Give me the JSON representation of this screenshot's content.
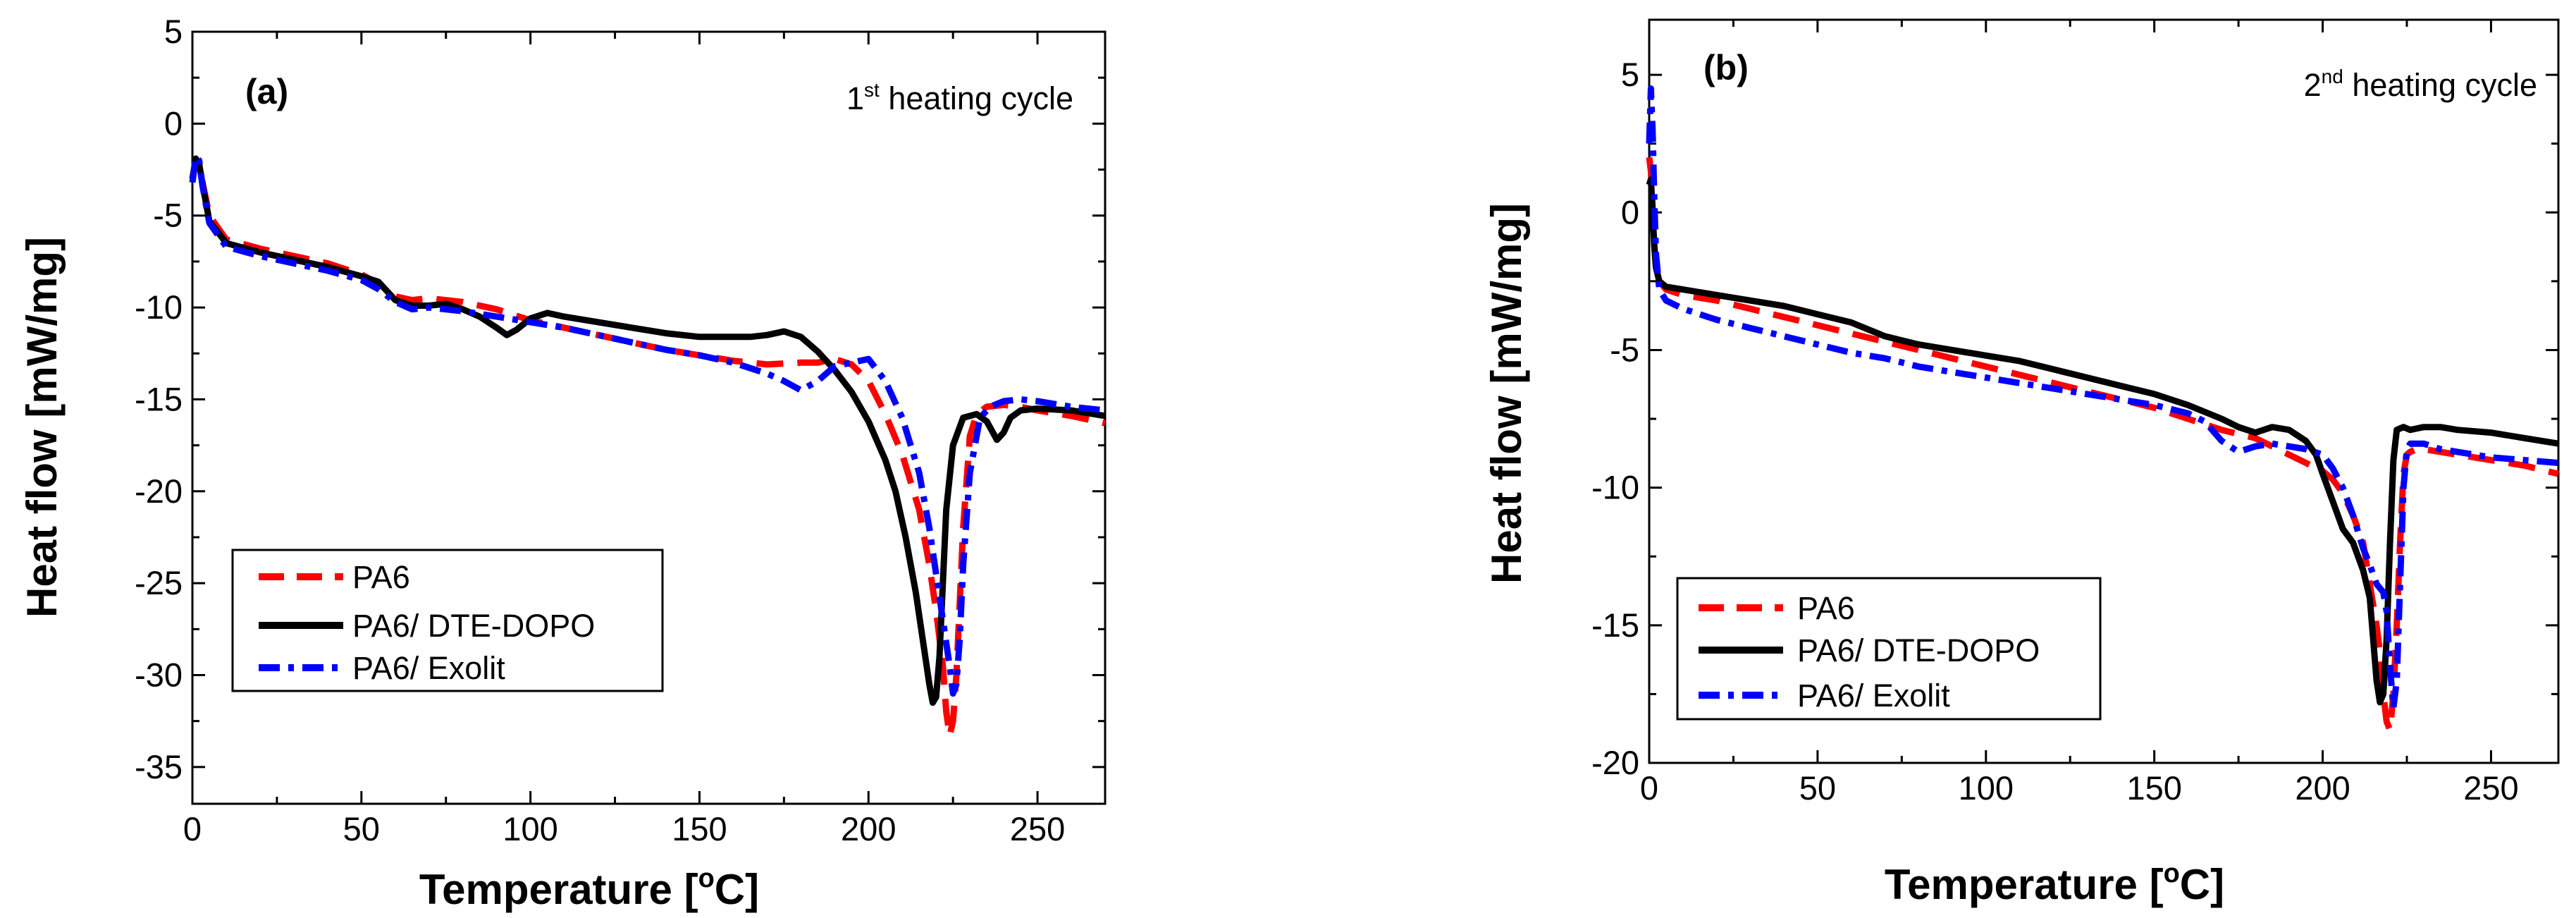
{
  "chart_data": [
    {
      "type": "line",
      "panel_label": "(a)",
      "cycle_label": {
        "ordinal": "1",
        "superscript": "st",
        "text": " heating cycle"
      },
      "xlabel": {
        "prefix": "Temperature [",
        "superscript": "o",
        "suffix": "C]"
      },
      "ylabel": "Heat flow [mW/mg]",
      "xlim": [
        0,
        270
      ],
      "ylim": [
        -37,
        5
      ],
      "xticks": [
        0,
        50,
        100,
        150,
        200,
        250
      ],
      "yticks": [
        5,
        0,
        -5,
        -10,
        -15,
        -20,
        -25,
        -30,
        -35
      ],
      "legend_position": "bottom-left",
      "series": [
        {
          "name": "PA6",
          "color": "#ff0000",
          "style": "dashed",
          "x": [
            0,
            1,
            2,
            3,
            5,
            10,
            20,
            30,
            40,
            50,
            55,
            60,
            65,
            70,
            80,
            90,
            100,
            110,
            120,
            130,
            140,
            150,
            160,
            170,
            180,
            185,
            190,
            195,
            200,
            205,
            210,
            215,
            218,
            220,
            222,
            223,
            224,
            225,
            226,
            227,
            228,
            230,
            232,
            235,
            240,
            245,
            250,
            260,
            270
          ],
          "y": [
            -3.0,
            -2.0,
            -2.3,
            -3.2,
            -5.0,
            -6.3,
            -6.8,
            -7.2,
            -7.6,
            -8.2,
            -8.7,
            -9.4,
            -9.6,
            -9.5,
            -9.7,
            -10.1,
            -10.7,
            -11.1,
            -11.5,
            -11.9,
            -12.3,
            -12.6,
            -12.9,
            -13.1,
            -13.0,
            -13.0,
            -12.8,
            -13.1,
            -14.0,
            -15.8,
            -18.0,
            -21.0,
            -24.0,
            -26.5,
            -29.5,
            -32.0,
            -33.3,
            -32.5,
            -30.0,
            -26.0,
            -22.0,
            -17.0,
            -15.8,
            -15.4,
            -15.3,
            -15.4,
            -15.6,
            -15.9,
            -16.3
          ]
        },
        {
          "name": "PA6/ DTE-DOPO",
          "color": "#000000",
          "style": "solid",
          "x": [
            0,
            1,
            2,
            3,
            5,
            10,
            20,
            30,
            40,
            50,
            55,
            60,
            65,
            70,
            75,
            80,
            85,
            90,
            93,
            96,
            100,
            105,
            110,
            120,
            130,
            140,
            150,
            160,
            165,
            170,
            175,
            180,
            185,
            190,
            195,
            200,
            205,
            208,
            211,
            214,
            216,
            218,
            219,
            220,
            221,
            222,
            223,
            225,
            228,
            232,
            235,
            238,
            240,
            242,
            245,
            250,
            260,
            270
          ],
          "y": [
            -3.0,
            -1.9,
            -2.2,
            -3.3,
            -5.3,
            -6.5,
            -7.0,
            -7.4,
            -7.8,
            -8.3,
            -8.6,
            -9.6,
            -9.9,
            -9.9,
            -9.8,
            -10.1,
            -10.5,
            -11.1,
            -11.5,
            -11.2,
            -10.6,
            -10.3,
            -10.5,
            -10.8,
            -11.1,
            -11.4,
            -11.6,
            -11.6,
            -11.6,
            -11.5,
            -11.3,
            -11.6,
            -12.4,
            -13.4,
            -14.6,
            -16.2,
            -18.3,
            -20.0,
            -22.5,
            -25.5,
            -28.0,
            -30.5,
            -31.5,
            -31.2,
            -29.0,
            -25.0,
            -21.0,
            -17.5,
            -16.0,
            -15.8,
            -16.2,
            -17.2,
            -16.8,
            -16.0,
            -15.6,
            -15.5,
            -15.6,
            -15.9
          ]
        },
        {
          "name": "PA6/ Exolit",
          "color": "#0000ff",
          "style": "dashdot",
          "x": [
            0,
            1,
            2,
            3,
            5,
            10,
            20,
            30,
            40,
            50,
            55,
            60,
            65,
            70,
            80,
            90,
            100,
            110,
            120,
            130,
            140,
            150,
            160,
            170,
            175,
            180,
            185,
            190,
            195,
            200,
            205,
            210,
            215,
            218,
            220,
            222,
            224,
            225,
            226,
            227,
            228,
            230,
            233,
            236,
            240,
            245,
            250,
            260,
            270
          ],
          "y": [
            -3.2,
            -1.8,
            -2.0,
            -3.4,
            -5.4,
            -6.7,
            -7.2,
            -7.6,
            -8.0,
            -8.5,
            -9.0,
            -9.7,
            -10.1,
            -10.0,
            -10.2,
            -10.5,
            -10.8,
            -11.1,
            -11.5,
            -11.9,
            -12.3,
            -12.6,
            -13.0,
            -13.6,
            -14.0,
            -14.5,
            -14.0,
            -13.2,
            -13.0,
            -12.8,
            -14.0,
            -16.0,
            -19.0,
            -22.0,
            -24.5,
            -27.0,
            -29.5,
            -31.0,
            -30.5,
            -28.0,
            -24.0,
            -19.0,
            -16.0,
            -15.4,
            -15.1,
            -15.0,
            -15.1,
            -15.4,
            -15.6
          ]
        }
      ]
    },
    {
      "type": "line",
      "panel_label": "(b)",
      "cycle_label": {
        "ordinal": "2",
        "superscript": "nd",
        "text": " heating cycle"
      },
      "xlabel": {
        "prefix": "Temperature [",
        "superscript": "o",
        "suffix": "C]"
      },
      "ylabel": "Heat flow [mW/mg]",
      "xlim": [
        0,
        270
      ],
      "ylim": [
        -20,
        7
      ],
      "xticks": [
        0,
        50,
        100,
        150,
        200,
        250
      ],
      "yticks": [
        5,
        0,
        -5,
        -10,
        -15,
        -20
      ],
      "legend_position": "bottom-left",
      "series": [
        {
          "name": "PA6",
          "color": "#ff0000",
          "style": "dashed",
          "x": [
            0,
            0.5,
            1,
            1.5,
            2,
            3,
            5,
            10,
            20,
            30,
            40,
            50,
            60,
            70,
            80,
            90,
            100,
            110,
            120,
            130,
            140,
            150,
            160,
            170,
            180,
            185,
            190,
            195,
            200,
            203,
            206,
            209,
            212,
            214,
            216,
            217,
            218,
            219,
            220,
            221,
            222,
            223,
            224,
            225,
            226,
            228,
            230,
            235,
            240,
            250,
            260,
            270
          ],
          "y": [
            2.0,
            1.5,
            0.2,
            -1.2,
            -2.0,
            -2.5,
            -2.8,
            -3.0,
            -3.2,
            -3.5,
            -3.8,
            -4.1,
            -4.4,
            -4.7,
            -5.0,
            -5.3,
            -5.6,
            -5.9,
            -6.2,
            -6.5,
            -6.8,
            -7.1,
            -7.5,
            -7.9,
            -8.2,
            -8.5,
            -8.8,
            -9.1,
            -9.4,
            -9.7,
            -10.2,
            -11.0,
            -12.0,
            -13.5,
            -15.0,
            -16.0,
            -17.5,
            -18.5,
            -18.8,
            -17.5,
            -15.0,
            -12.0,
            -9.5,
            -8.8,
            -8.7,
            -8.6,
            -8.6,
            -8.7,
            -8.8,
            -9.0,
            -9.2,
            -9.5
          ]
        },
        {
          "name": "PA6/ DTE-DOPO",
          "color": "#000000",
          "style": "solid",
          "x": [
            0,
            0.5,
            1,
            1.5,
            2,
            3,
            5,
            10,
            20,
            30,
            40,
            50,
            60,
            70,
            80,
            90,
            100,
            110,
            120,
            130,
            140,
            150,
            160,
            170,
            175,
            180,
            185,
            190,
            195,
            198,
            200,
            203,
            206,
            209,
            212,
            214,
            215,
            216,
            217,
            218,
            219,
            220,
            221,
            222,
            224,
            226,
            230,
            235,
            240,
            250,
            260,
            270
          ],
          "y": [
            1.0,
            1.2,
            0.0,
            -1.2,
            -2.0,
            -2.5,
            -2.7,
            -2.8,
            -3.0,
            -3.2,
            -3.4,
            -3.7,
            -4.0,
            -4.5,
            -4.8,
            -5.0,
            -5.2,
            -5.4,
            -5.7,
            -6.0,
            -6.3,
            -6.6,
            -7.0,
            -7.5,
            -7.8,
            -8.0,
            -7.8,
            -7.9,
            -8.3,
            -8.8,
            -9.5,
            -10.5,
            -11.5,
            -12.0,
            -13.0,
            -14.0,
            -15.5,
            -17.0,
            -17.8,
            -17.5,
            -15.5,
            -12.0,
            -9.0,
            -7.9,
            -7.8,
            -7.9,
            -7.8,
            -7.8,
            -7.9,
            -8.0,
            -8.2,
            -8.4
          ]
        },
        {
          "name": "PA6/ Exolit",
          "color": "#0000ff",
          "style": "dashdot",
          "x": [
            0,
            0.5,
            1,
            1.5,
            2,
            3,
            5,
            10,
            20,
            30,
            40,
            50,
            60,
            70,
            80,
            90,
            100,
            110,
            120,
            130,
            140,
            150,
            160,
            165,
            170,
            175,
            180,
            185,
            190,
            195,
            200,
            203,
            206,
            209,
            212,
            214,
            216,
            218,
            219,
            220,
            221,
            222,
            223,
            224,
            225,
            226,
            228,
            230,
            235,
            240,
            250,
            260,
            270
          ],
          "y": [
            2.5,
            4.5,
            3.0,
            0.5,
            -1.5,
            -2.8,
            -3.2,
            -3.5,
            -3.9,
            -4.2,
            -4.5,
            -4.8,
            -5.1,
            -5.3,
            -5.6,
            -5.8,
            -6.0,
            -6.2,
            -6.4,
            -6.6,
            -6.8,
            -7.0,
            -7.3,
            -7.6,
            -8.3,
            -8.7,
            -8.5,
            -8.4,
            -8.5,
            -8.6,
            -8.8,
            -9.3,
            -10.0,
            -11.0,
            -12.2,
            -12.8,
            -13.5,
            -13.8,
            -14.5,
            -16.5,
            -18.0,
            -17.0,
            -13.5,
            -10.0,
            -8.6,
            -8.4,
            -8.4,
            -8.4,
            -8.6,
            -8.7,
            -8.9,
            -9.0,
            -9.1
          ]
        }
      ]
    }
  ]
}
